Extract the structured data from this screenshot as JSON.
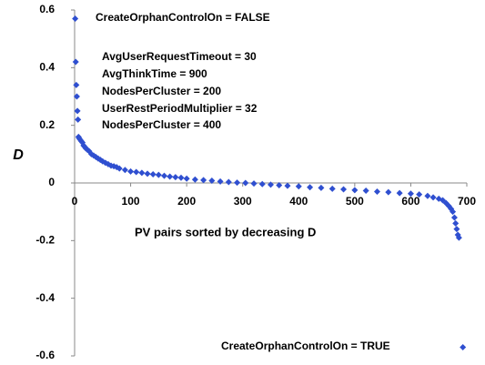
{
  "chart_data": {
    "type": "scatter",
    "xlabel": "PV pairs sorted by decreasing D",
    "ylabel": "D",
    "annotations": [
      "CreateOrphanControlOn = FALSE",
      "AvgUserRequestTimeout = 30",
      "AvgThinkTime = 900",
      "NodesPerCluster = 200",
      "UserRestPeriodMultiplier = 32",
      "NodesPerCluster = 400",
      "CreateOrphanControlOn = TRUE"
    ],
    "xlim": [
      0,
      700
    ],
    "ylim": [
      -0.6,
      0.6
    ],
    "xticks": [
      0,
      100,
      200,
      300,
      400,
      500,
      600,
      700
    ],
    "yticks": [
      -0.6,
      -0.4,
      -0.2,
      0,
      0.2,
      0.4,
      0.6
    ],
    "series": [
      {
        "color": "#2f4fd0",
        "x": [
          1,
          2,
          3,
          4,
          5,
          6,
          7,
          8,
          10,
          12,
          14,
          16,
          18,
          20,
          23,
          26,
          30,
          34,
          38,
          42,
          46,
          50,
          55,
          60,
          65,
          70,
          75,
          80,
          90,
          100,
          110,
          120,
          130,
          140,
          150,
          160,
          170,
          180,
          190,
          200,
          215,
          230,
          245,
          260,
          275,
          290,
          305,
          320,
          335,
          350,
          365,
          380,
          400,
          420,
          440,
          460,
          480,
          500,
          520,
          540,
          560,
          580,
          600,
          615,
          630,
          640,
          650,
          657,
          663,
          668,
          672,
          675,
          678,
          680,
          682,
          684,
          686,
          693
        ],
        "values": [
          0.57,
          0.42,
          0.34,
          0.3,
          0.25,
          0.22,
          0.16,
          0.155,
          0.15,
          0.145,
          0.14,
          0.13,
          0.125,
          0.12,
          0.115,
          0.11,
          0.1,
          0.095,
          0.09,
          0.085,
          0.08,
          0.075,
          0.07,
          0.065,
          0.06,
          0.058,
          0.055,
          0.05,
          0.045,
          0.04,
          0.038,
          0.035,
          0.032,
          0.03,
          0.028,
          0.025,
          0.022,
          0.02,
          0.018,
          0.015,
          0.012,
          0.01,
          0.008,
          0.005,
          0.003,
          0.001,
          0,
          -0.002,
          -0.004,
          -0.006,
          -0.008,
          -0.01,
          -0.012,
          -0.015,
          -0.017,
          -0.02,
          -0.022,
          -0.025,
          -0.027,
          -0.03,
          -0.032,
          -0.035,
          -0.037,
          -0.04,
          -0.045,
          -0.05,
          -0.055,
          -0.06,
          -0.07,
          -0.08,
          -0.09,
          -0.1,
          -0.12,
          -0.14,
          -0.16,
          -0.18,
          -0.19,
          -0.57
        ]
      }
    ]
  }
}
